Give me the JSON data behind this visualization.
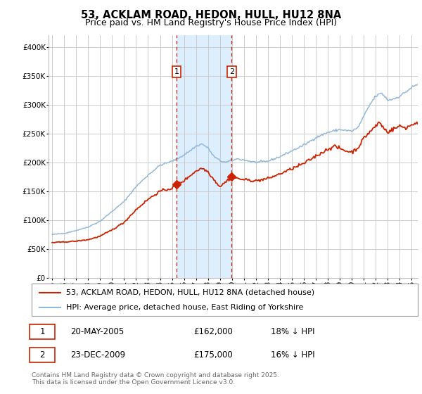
{
  "title": "53, ACKLAM ROAD, HEDON, HULL, HU12 8NA",
  "subtitle": "Price paid vs. HM Land Registry's House Price Index (HPI)",
  "legend_line1": "53, ACKLAM ROAD, HEDON, HULL, HU12 8NA (detached house)",
  "legend_line2": "HPI: Average price, detached house, East Riding of Yorkshire",
  "annotation1_label": "1",
  "annotation1_date": "20-MAY-2005",
  "annotation1_price": "£162,000",
  "annotation1_hpi": "18% ↓ HPI",
  "annotation2_label": "2",
  "annotation2_date": "23-DEC-2009",
  "annotation2_price": "£175,000",
  "annotation2_hpi": "16% ↓ HPI",
  "footnote": "Contains HM Land Registry data © Crown copyright and database right 2025.\nThis data is licensed under the Open Government Licence v3.0.",
  "hpi_color": "#92b8d8",
  "price_color": "#cc2200",
  "vline1_x": 2005.38,
  "vline2_x": 2009.98,
  "marker1_y": 162000,
  "marker2_y": 175000,
  "ylim": [
    0,
    420000
  ],
  "xlim": [
    1994.7,
    2025.5
  ],
  "background_color": "#ffffff",
  "grid_color": "#cccccc",
  "shade_color": "#ddeeff",
  "title_fontsize": 10.5,
  "subtitle_fontsize": 9,
  "tick_fontsize": 7.5,
  "legend_fontsize": 8,
  "table_fontsize": 8.5,
  "footnote_fontsize": 6.5
}
